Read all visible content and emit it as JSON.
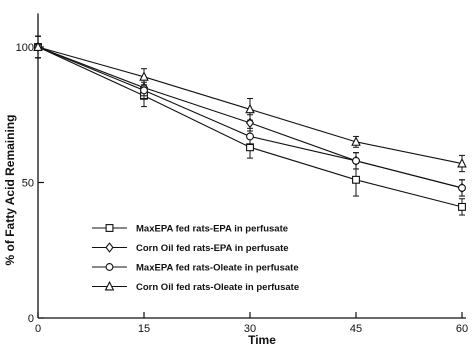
{
  "chart_data": {
    "type": "line",
    "xlabel": "Time",
    "ylabel": "% of Fatty Acid Remaining",
    "xlim": [
      0,
      60
    ],
    "ylim": [
      0,
      105
    ],
    "x_ticks": [
      0,
      15,
      30,
      45,
      60
    ],
    "y_ticks": [
      0,
      50,
      100
    ],
    "grid": false,
    "legend_position": "bottom-left",
    "x": [
      0,
      15,
      30,
      45,
      60
    ],
    "series": [
      {
        "name": "MaxEPA fed rats-EPA in perfusate",
        "marker": "square",
        "values": [
          100,
          82,
          63,
          51,
          41
        ],
        "errors": [
          4,
          4,
          4,
          6,
          3
        ]
      },
      {
        "name": "Corn Oil fed rats-EPA in perfusate",
        "marker": "diamond",
        "values": [
          100,
          85,
          72,
          58,
          48
        ],
        "errors": [
          4,
          3,
          3,
          3,
          3
        ]
      },
      {
        "name": "MaxEPA fed rats-Oleate in perfusate",
        "marker": "circle",
        "values": [
          100,
          84,
          67,
          58,
          48
        ],
        "errors": [
          4,
          3,
          3,
          3,
          3
        ]
      },
      {
        "name": "Corn Oil fed rats-Oleate in perfusate",
        "marker": "triangle",
        "values": [
          100,
          89,
          77,
          65,
          57
        ],
        "errors": [
          4,
          3,
          4,
          2,
          3
        ]
      }
    ]
  }
}
